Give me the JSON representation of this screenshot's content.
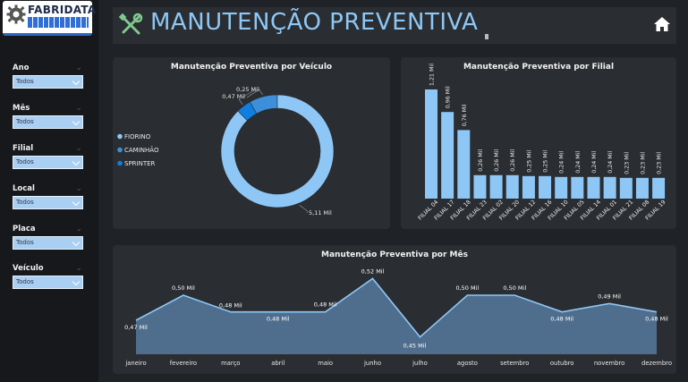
{
  "brand": {
    "name": "FABRIDATA"
  },
  "header": {
    "title": "MANUTENÇÃO PREVENTIVA",
    "tools_icon": "wrench-screwdriver-icon",
    "home_icon": "home-icon"
  },
  "colors": {
    "accent": "#8ec7f5",
    "series_light": "#8ec7f5",
    "series_mid": "#3d8fd9",
    "series_dark": "#0e7fe0",
    "panel": "#2a2d31",
    "background": "#1f2226"
  },
  "filters": [
    {
      "label": "Ano",
      "value": "Todos"
    },
    {
      "label": "Mês",
      "value": "Todos"
    },
    {
      "label": "Filial",
      "value": "Todos"
    },
    {
      "label": "Local",
      "value": "Todos"
    },
    {
      "label": "Placa",
      "value": "Todos"
    },
    {
      "label": "Veículo",
      "value": "Todos"
    }
  ],
  "chart_data": [
    {
      "type": "pie",
      "title": "Manutenção Preventiva por Veículo",
      "legend_position": "left",
      "labels": [
        "FIORINO",
        "CAMINHÃO",
        "SPRINTER"
      ],
      "values": [
        5.11,
        0.47,
        0.25
      ],
      "data_labels": [
        "5,11 Mil",
        "0,47 Mil",
        "0,25 Mil"
      ],
      "colors": [
        "#8ec7f5",
        "#3d8fd9",
        "#0e7fe0"
      ]
    },
    {
      "type": "bar",
      "title": "Manutenção Preventiva por Filial",
      "categories": [
        "FILIAL 04",
        "FILIAL 17",
        "FILIAL 18",
        "FILIAL 23",
        "FILIAL 02",
        "FILIAL 20",
        "FILIAL 12",
        "FILIAL 16",
        "FILIAL 10",
        "FILIAL 05",
        "FILIAL 14",
        "FILIAL 01",
        "FILIAL 21",
        "FILIAL 08",
        "FILIAL 19"
      ],
      "values": [
        1.21,
        0.96,
        0.76,
        0.26,
        0.26,
        0.26,
        0.25,
        0.25,
        0.24,
        0.24,
        0.24,
        0.24,
        0.23,
        0.23,
        0.23
      ],
      "data_labels": [
        "1,21 Mil",
        "0,96 Mil",
        "0,76 Mil",
        "0,26 Mil",
        "0,26 Mil",
        "0,26 Mil",
        "0,25 Mil",
        "0,25 Mil",
        "0,24 Mil",
        "0,24 Mil",
        "0,24 Mil",
        "0,24 Mil",
        "0,23 Mil",
        "0,23 Mil",
        "0,23 Mil"
      ],
      "ylim": [
        0,
        1.3
      ],
      "color": "#8ec7f5"
    },
    {
      "type": "area",
      "title": "Manutenção Preventiva por Mês",
      "categories": [
        "janeiro",
        "fevereiro",
        "março",
        "abril",
        "maio",
        "junho",
        "julho",
        "agosto",
        "setembro",
        "outubro",
        "novembro",
        "dezembro"
      ],
      "values": [
        0.47,
        0.5,
        0.48,
        0.48,
        0.48,
        0.52,
        0.45,
        0.5,
        0.5,
        0.48,
        0.49,
        0.48
      ],
      "data_labels": [
        "0,47 Mil",
        "0,50 Mil",
        "0,48 Mil",
        "0,48 Mil",
        "0,48 Mil",
        "0,52 Mil",
        "0,45 Mil",
        "0,50 Mil",
        "0,50 Mil",
        "0,48 Mil",
        "0,49 Mil",
        "0,48 Mil"
      ],
      "ylim": [
        0.44,
        0.53
      ],
      "line_color": "#8ec7f5",
      "fill_color": "#4f6d8c"
    }
  ]
}
